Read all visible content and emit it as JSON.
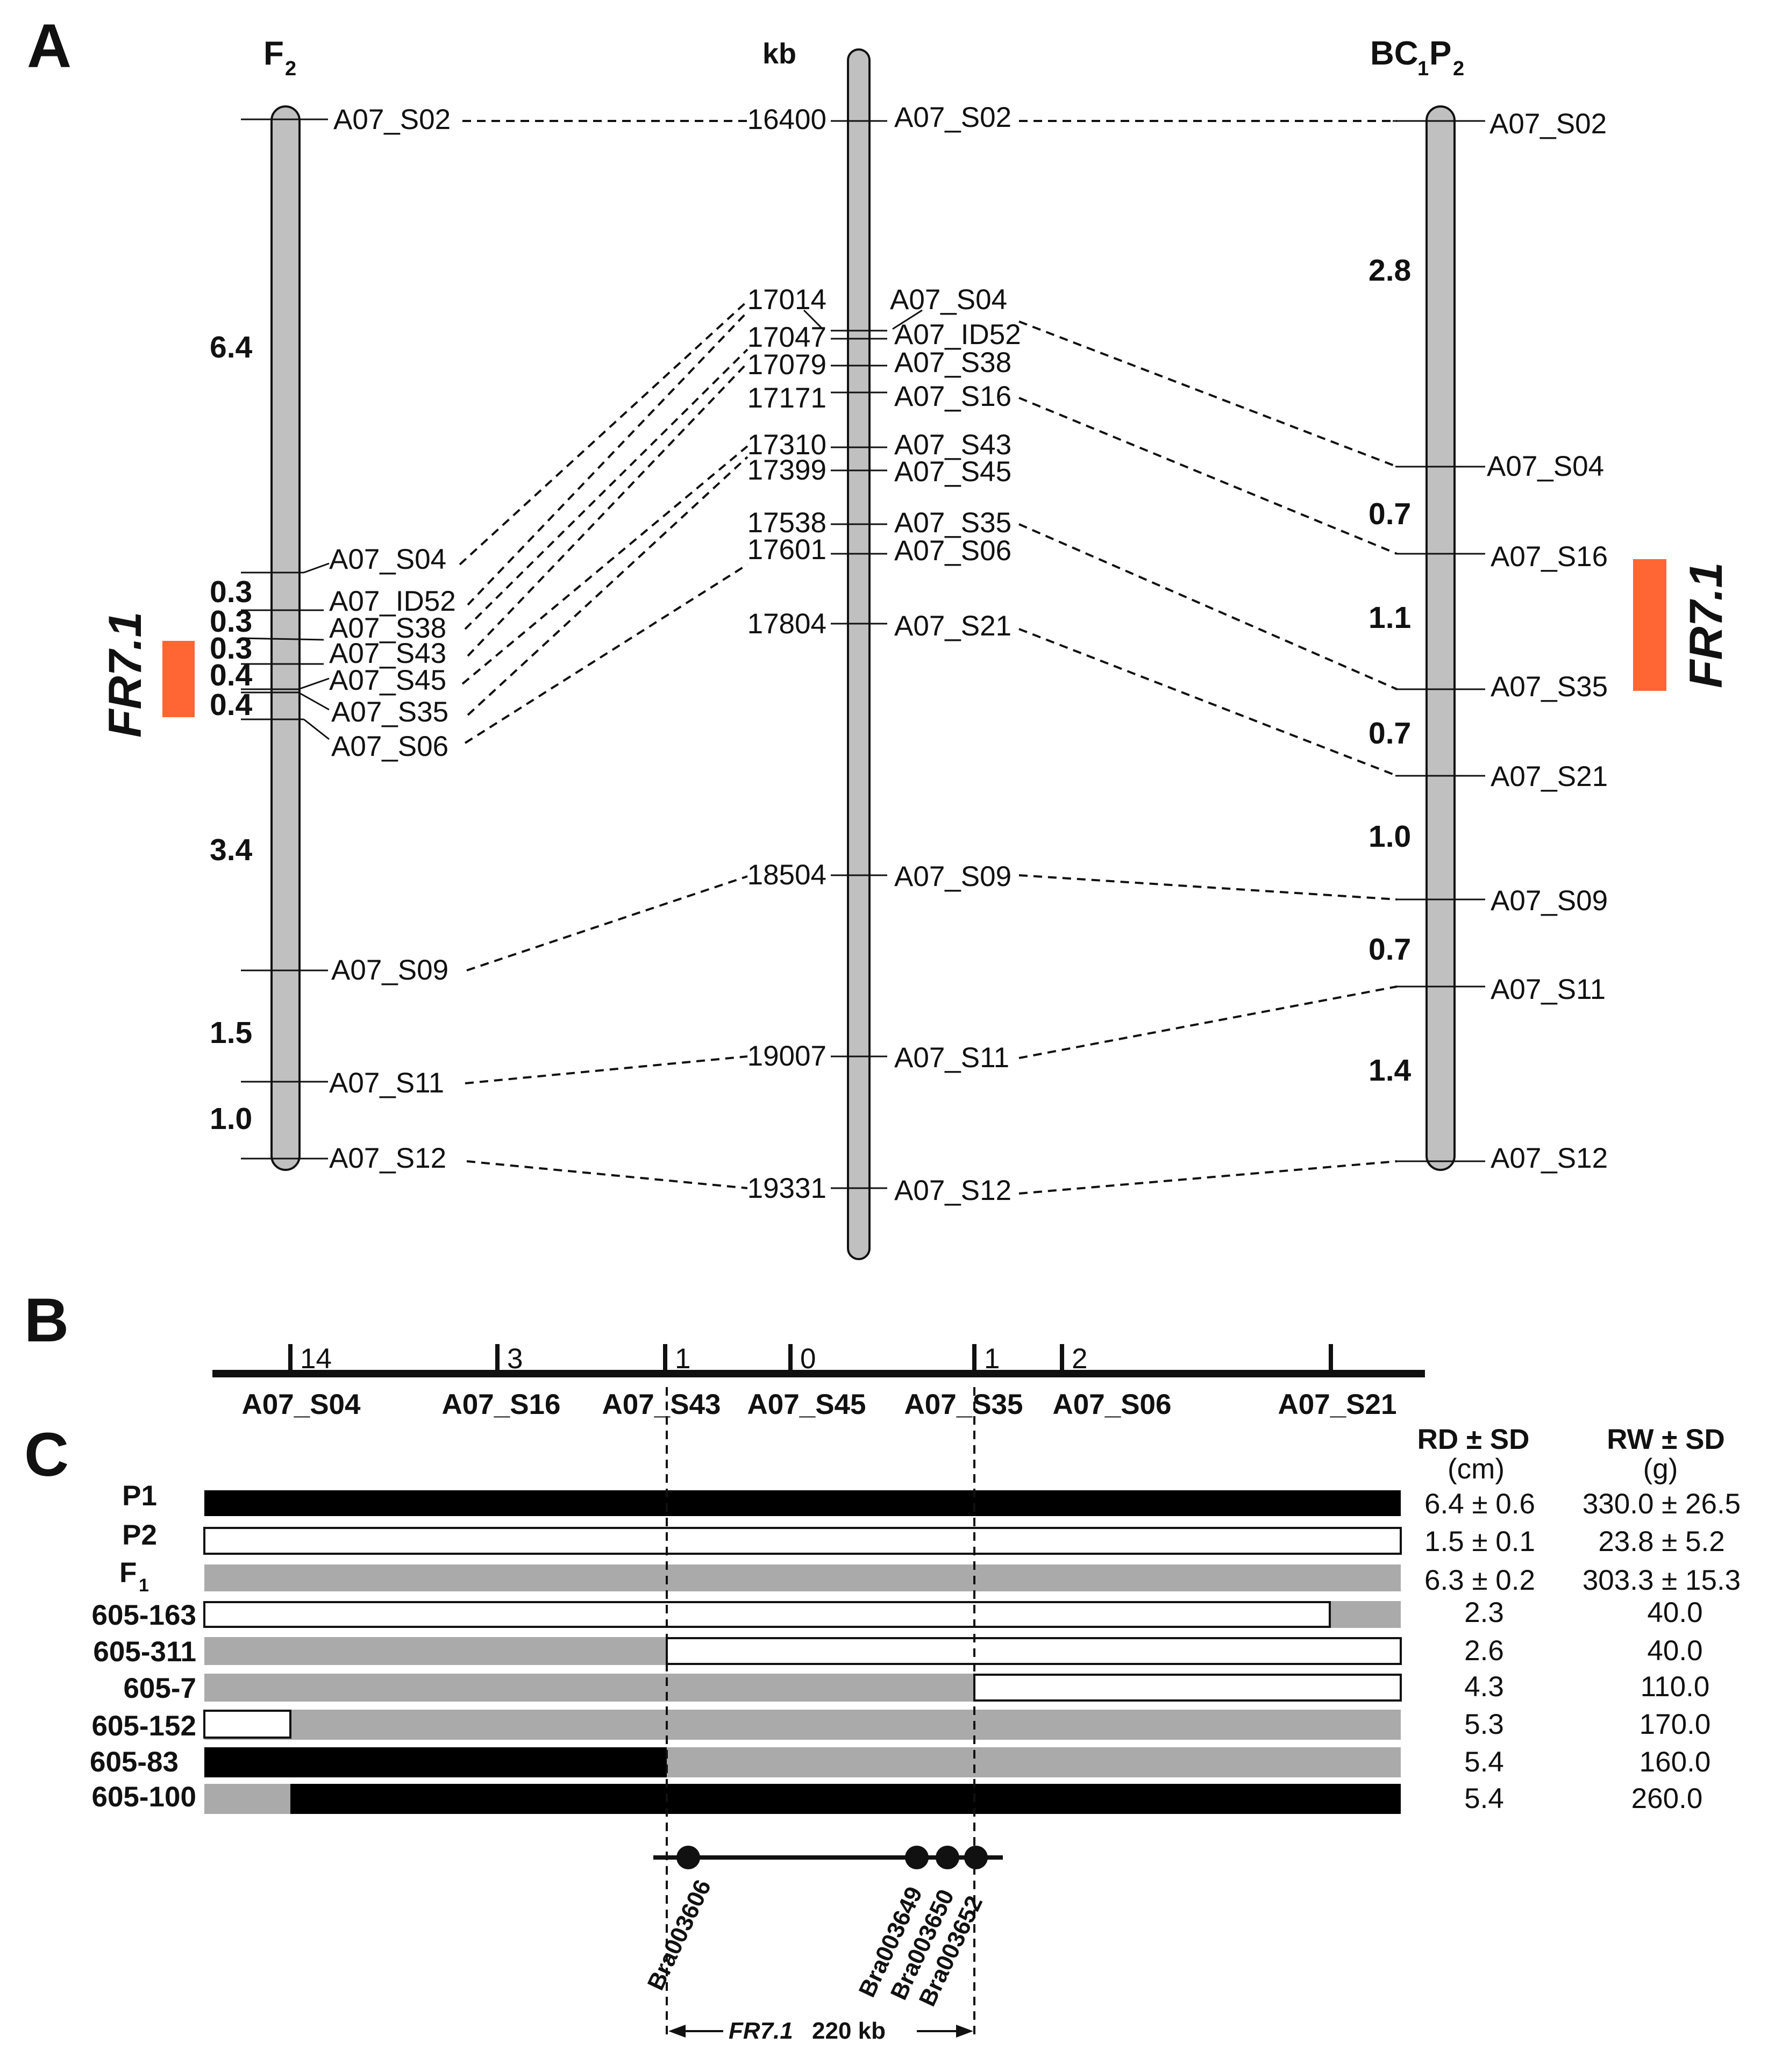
{
  "panels": {
    "a": "A",
    "b": "B",
    "c": "C"
  },
  "f2": {
    "title": "F",
    "title_sub": "2",
    "markers": [
      "A07_S02",
      "A07_S04",
      "A07_ID52",
      "A07_S38",
      "A07_S43",
      "A07_S45",
      "A07_S35",
      "A07_S06",
      "A07_S09",
      "A07_S11",
      "A07_S12"
    ],
    "distances": [
      "6.4",
      "0.3",
      "0.3",
      "0.3",
      "0.4",
      "0.4",
      "3.4",
      "1.5",
      "1.0"
    ],
    "qtl_label": "FR7.1"
  },
  "physical": {
    "unit": "kb",
    "positions": [
      "16400",
      "17014",
      "17047",
      "17079",
      "17171",
      "17310",
      "17399",
      "17538",
      "17601",
      "17804",
      "18504",
      "19007",
      "19331"
    ],
    "markers": [
      "A07_S02",
      "A07_S04",
      "A07_ID52",
      "A07_S38",
      "A07_S16",
      "A07_S43",
      "A07_S45",
      "A07_S35",
      "A07_S06",
      "A07_S21",
      "A07_S09",
      "A07_S11",
      "A07_S12"
    ]
  },
  "bc1p2": {
    "title_a": "BC",
    "title_sub1": "1",
    "title_b": "P",
    "title_sub2": "2",
    "markers": [
      "A07_S02",
      "A07_S04",
      "A07_S16",
      "A07_S35",
      "A07_S21",
      "A07_S09",
      "A07_S11",
      "A07_S12"
    ],
    "distances": [
      "2.8",
      "0.7",
      "1.1",
      "0.7",
      "1.0",
      "0.7",
      "1.4"
    ],
    "qtl_label": "FR7.1"
  },
  "panel_b": {
    "markers": [
      "A07_S04",
      "A07_S16",
      "A07_S43",
      "A07_S45",
      "A07_S35",
      "A07_S06",
      "A07_S21"
    ],
    "recombinants": [
      "14",
      "3",
      "1",
      "0",
      "1",
      "2"
    ]
  },
  "panel_c": {
    "col1_head": "RD ± SD",
    "col1_unit": "(cm)",
    "col2_head": "RW ± SD",
    "col2_unit": "(g)",
    "rows": [
      {
        "label": "P1",
        "rd": "6.4 ± 0.6",
        "rw": "330.0 ± 26.5",
        "genotype": [
          "P1"
        ]
      },
      {
        "label": "P2",
        "rd": "1.5 ± 0.1",
        "rw": "23.8 ± 5.2",
        "genotype": [
          "P2"
        ]
      },
      {
        "label": "F",
        "label_sub": "1",
        "rd": "6.3 ± 0.2",
        "rw": "303.3 ± 15.3",
        "genotype": [
          "het"
        ]
      },
      {
        "label": "605-163",
        "rd": "2.3",
        "rw": "40.0",
        "genotype": [
          "P2",
          "het"
        ]
      },
      {
        "label": "605-311",
        "rd": "2.6",
        "rw": "40.0",
        "genotype": [
          "het",
          "P2"
        ]
      },
      {
        "label": "605-7",
        "rd": "4.3",
        "rw": "110.0",
        "genotype": [
          "het",
          "P2"
        ]
      },
      {
        "label": "605-152",
        "rd": "5.3",
        "rw": "170.0",
        "genotype": [
          "P2",
          "het"
        ]
      },
      {
        "label": "605-83",
        "rd": "5.4",
        "rw": "160.0",
        "genotype": [
          "P1",
          "het"
        ]
      },
      {
        "label": "605-100",
        "rd": "5.4",
        "rw": "260.0",
        "genotype": [
          "het",
          "P1"
        ]
      }
    ],
    "genotype_colors": {
      "P1": "#000000",
      "P2": "#ffffff",
      "het": "#aaaaaa"
    },
    "genes": [
      "Bra003606",
      "Bra003649",
      "Bra003650",
      "Bra003652"
    ],
    "interval_name": "FR7.1",
    "interval_size": "220 kb"
  },
  "colors": {
    "qtl": "#ff6633",
    "chromosome": "#c0c0c0"
  }
}
